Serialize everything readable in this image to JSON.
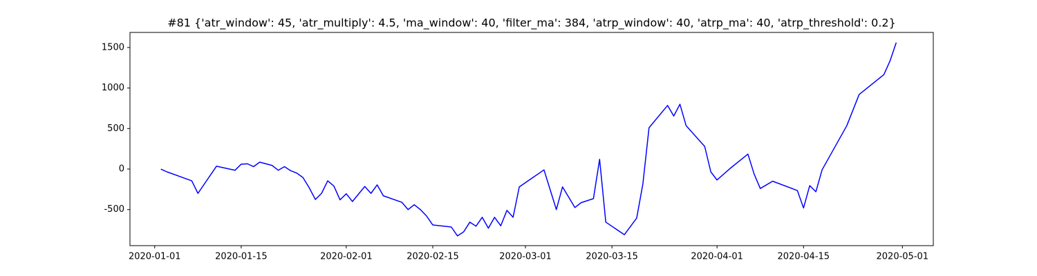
{
  "chart_data": {
    "type": "line",
    "title": "#81 {'atr_window': 45, 'atr_multiply': 4.5, 'ma_window': 40, 'filter_ma': 384, 'atrp_window': 40, 'atrp_ma': 40, 'atrp_threshold': 0.2}",
    "x": [
      "2020-01-02",
      "2020-01-03",
      "2020-01-07",
      "2020-01-08",
      "2020-01-11",
      "2020-01-14",
      "2020-01-15",
      "2020-01-16",
      "2020-01-17",
      "2020-01-18",
      "2020-01-20",
      "2020-01-21",
      "2020-01-22",
      "2020-01-23",
      "2020-01-24",
      "2020-01-25",
      "2020-01-26",
      "2020-01-27",
      "2020-01-28",
      "2020-01-29",
      "2020-01-30",
      "2020-01-31",
      "2020-02-01",
      "2020-02-02",
      "2020-02-04",
      "2020-02-05",
      "2020-02-06",
      "2020-02-07",
      "2020-02-10",
      "2020-02-11",
      "2020-02-12",
      "2020-02-13",
      "2020-02-14",
      "2020-02-15",
      "2020-02-18",
      "2020-02-19",
      "2020-02-20",
      "2020-02-21",
      "2020-02-22",
      "2020-02-23",
      "2020-02-24",
      "2020-02-25",
      "2020-02-26",
      "2020-02-27",
      "2020-02-28",
      "2020-02-29",
      "2020-03-04",
      "2020-03-06",
      "2020-03-07",
      "2020-03-09",
      "2020-03-10",
      "2020-03-12",
      "2020-03-13",
      "2020-03-14",
      "2020-03-17",
      "2020-03-19",
      "2020-03-20",
      "2020-03-21",
      "2020-03-24",
      "2020-03-25",
      "2020-03-26",
      "2020-03-27",
      "2020-03-30",
      "2020-03-31",
      "2020-04-01",
      "2020-04-03",
      "2020-04-06",
      "2020-04-07",
      "2020-04-08",
      "2020-04-09",
      "2020-04-10",
      "2020-04-14",
      "2020-04-15",
      "2020-04-16",
      "2020-04-17",
      "2020-04-18",
      "2020-04-22",
      "2020-04-24",
      "2020-04-28",
      "2020-04-29",
      "2020-04-30"
    ],
    "series": [
      {
        "color": "#0000ff",
        "values": [
          0,
          -35,
          -145,
          -300,
          35,
          -15,
          60,
          65,
          30,
          85,
          45,
          -15,
          30,
          -20,
          -50,
          -105,
          -230,
          -375,
          -300,
          -145,
          -210,
          -380,
          -305,
          -400,
          -215,
          -300,
          -195,
          -330,
          -410,
          -500,
          -440,
          -500,
          -580,
          -690,
          -715,
          -825,
          -775,
          -655,
          -705,
          -595,
          -730,
          -595,
          -700,
          -510,
          -595,
          -220,
          -10,
          -500,
          -220,
          -475,
          -415,
          -365,
          120,
          -655,
          -810,
          -605,
          -185,
          510,
          785,
          655,
          800,
          535,
          280,
          -35,
          -135,
          0,
          185,
          -60,
          -240,
          -195,
          -150,
          -265,
          -480,
          -205,
          -280,
          -10,
          535,
          920,
          1165,
          1335,
          1560
        ]
      }
    ],
    "xlim": [
      "2019-12-28",
      "2020-05-06"
    ],
    "xticks": [
      "2020-01-01",
      "2020-01-15",
      "2020-02-01",
      "2020-02-15",
      "2020-03-01",
      "2020-03-15",
      "2020-04-01",
      "2020-04-15",
      "2020-05-01"
    ],
    "ylim": [
      -945,
      1686
    ],
    "yticks": [
      -500,
      0,
      500,
      1000,
      1500
    ],
    "grid": false
  }
}
